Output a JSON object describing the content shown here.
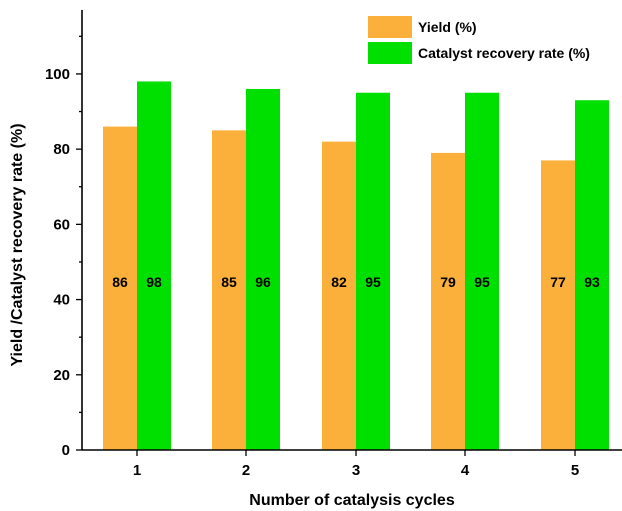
{
  "chart_data": {
    "type": "bar",
    "title": "",
    "xlabel": "Number of catalysis cycles",
    "ylabel": "Yield /Catalyst recovery rate (%)",
    "categories": [
      "1",
      "2",
      "3",
      "4",
      "5"
    ],
    "series": [
      {
        "name": "Yield (%)",
        "color": "#FBB03B",
        "values": [
          86,
          85,
          82,
          79,
          77
        ]
      },
      {
        "name": "Catalyst recovery rate (%)",
        "color": "#00E000",
        "values": [
          98,
          96,
          95,
          95,
          93
        ]
      }
    ],
    "ylim": [
      0,
      117
    ],
    "yticks": [
      0,
      20,
      40,
      60,
      80,
      100
    ],
    "data_label_y": 45,
    "grid": false,
    "legend_position": "top-right"
  }
}
